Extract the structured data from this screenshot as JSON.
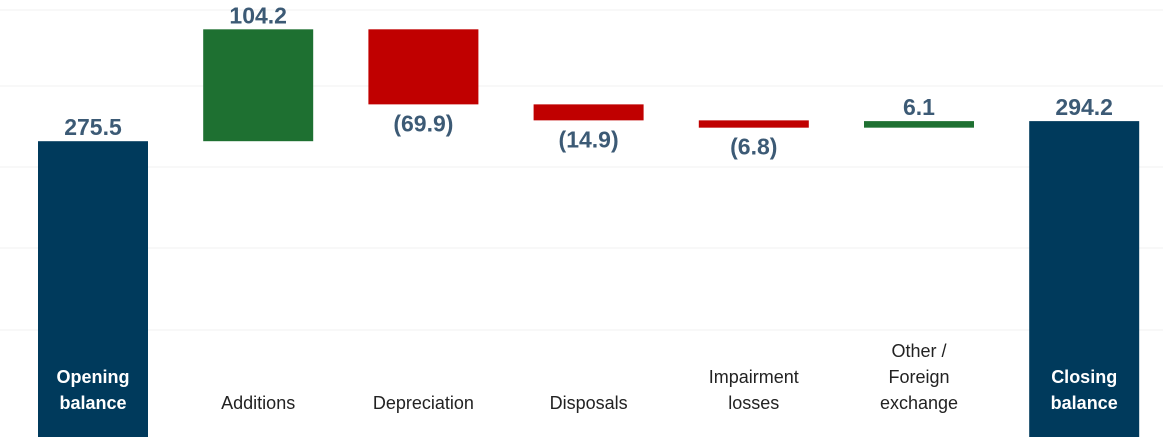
{
  "chart_data": {
    "type": "bar",
    "subtype": "waterfall",
    "title": "",
    "xlabel": "",
    "ylabel": "",
    "categories": [
      "Opening balance",
      "Additions",
      "Depreciation",
      "Disposals",
      "Impairment losses",
      "Other / Foreign exchange",
      "Closing balance"
    ],
    "values": [
      275.5,
      104.2,
      -69.9,
      -14.9,
      -6.8,
      6.1,
      294.2
    ],
    "kinds": [
      "total",
      "delta",
      "delta",
      "delta",
      "delta",
      "delta",
      "total"
    ],
    "data_labels": [
      "275.5",
      "104.2",
      "(69.9)",
      "(14.9)",
      "(6.8)",
      "6.1",
      "294.2"
    ],
    "label_lines": [
      [
        "Opening",
        "balance"
      ],
      [
        "Additions"
      ],
      [
        "Depreciation"
      ],
      [
        "Disposals"
      ],
      [
        "Impairment",
        "losses"
      ],
      [
        "Other /",
        "Foreign",
        "exchange"
      ],
      [
        "Closing",
        "balance"
      ]
    ],
    "colors": {
      "total": "#003a5c",
      "increase": "#1e7031",
      "decrease": "#c00000",
      "label": "#3c5a75"
    },
    "grid": true,
    "legend": "none"
  }
}
